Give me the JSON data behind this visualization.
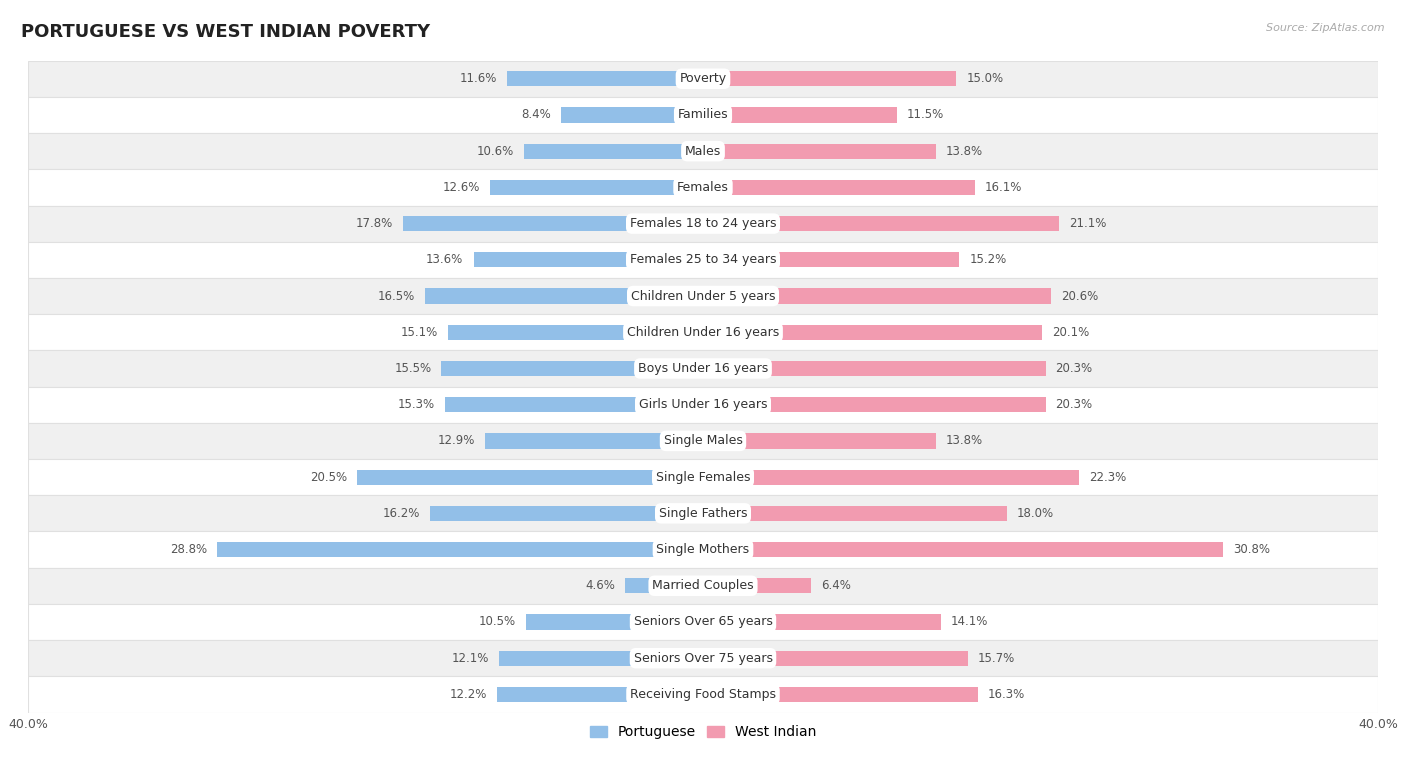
{
  "title": "PORTUGUESE VS WEST INDIAN POVERTY",
  "source": "Source: ZipAtlas.com",
  "categories": [
    "Poverty",
    "Families",
    "Males",
    "Females",
    "Females 18 to 24 years",
    "Females 25 to 34 years",
    "Children Under 5 years",
    "Children Under 16 years",
    "Boys Under 16 years",
    "Girls Under 16 years",
    "Single Males",
    "Single Females",
    "Single Fathers",
    "Single Mothers",
    "Married Couples",
    "Seniors Over 65 years",
    "Seniors Over 75 years",
    "Receiving Food Stamps"
  ],
  "portuguese": [
    11.6,
    8.4,
    10.6,
    12.6,
    17.8,
    13.6,
    16.5,
    15.1,
    15.5,
    15.3,
    12.9,
    20.5,
    16.2,
    28.8,
    4.6,
    10.5,
    12.1,
    12.2
  ],
  "west_indian": [
    15.0,
    11.5,
    13.8,
    16.1,
    21.1,
    15.2,
    20.6,
    20.1,
    20.3,
    20.3,
    13.8,
    22.3,
    18.0,
    30.8,
    6.4,
    14.1,
    15.7,
    16.3
  ],
  "portuguese_color": "#92bfe8",
  "west_indian_color": "#f29bb0",
  "background_row_light": "#f0f0f0",
  "background_row_white": "#ffffff",
  "row_border_color": "#e0e0e0",
  "axis_max": 40.0,
  "bar_height": 0.42,
  "title_fontsize": 13,
  "label_fontsize": 9,
  "value_fontsize": 8.5,
  "legend_fontsize": 10
}
